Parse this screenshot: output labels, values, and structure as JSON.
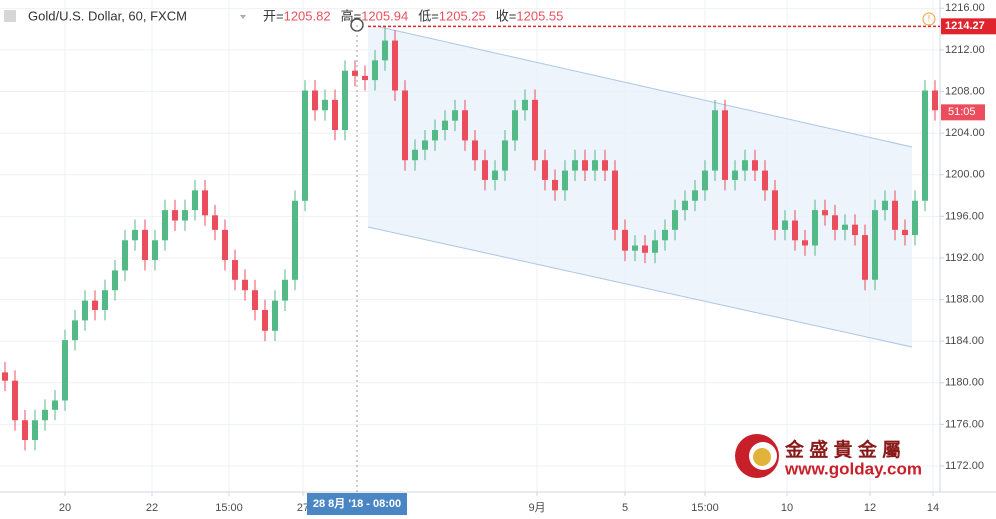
{
  "header": {
    "symbol": "Gold/U.S. Dollar, 60, FXCM",
    "ohlc": [
      {
        "label": "开=",
        "value": "1205.82"
      },
      {
        "label": "高=",
        "value": "1205.94"
      },
      {
        "label": "低=",
        "value": "1205.25"
      },
      {
        "label": "收=",
        "value": "1205.55"
      }
    ]
  },
  "chart_data": {
    "type": "candlestick",
    "up_color": "#53b987",
    "down_color": "#eb4d5c",
    "open": [
      1181.0,
      1180.2,
      1176.4,
      1174.5,
      1176.4,
      1177.4,
      1178.3,
      1184.1,
      1186.0,
      1187.9,
      1187.0,
      1188.9,
      1190.8,
      1193.7,
      1194.7,
      1191.8,
      1193.7,
      1196.6,
      1195.6,
      1196.6,
      1198.5,
      1196.1,
      1194.7,
      1191.8,
      1189.9,
      1188.9,
      1187.0,
      1185.0,
      1187.9,
      1189.9,
      1197.5,
      1208.1,
      1206.2,
      1207.2,
      1204.3,
      1210.0,
      1209.5,
      1209.1,
      1211.0,
      1212.9,
      1208.1,
      1201.4,
      1202.4,
      1203.3,
      1204.3,
      1205.2,
      1206.2,
      1203.3,
      1201.4,
      1199.5,
      1200.4,
      1203.3,
      1206.2,
      1207.2,
      1201.4,
      1199.5,
      1198.5,
      1200.4,
      1201.4,
      1200.4,
      1201.4,
      1200.4,
      1194.7,
      1192.7,
      1193.2,
      1192.5,
      1193.7,
      1194.7,
      1196.6,
      1197.5,
      1198.5,
      1200.4,
      1206.2,
      1199.5,
      1200.4,
      1201.4,
      1200.4,
      1198.5,
      1194.7,
      1195.6,
      1193.7,
      1193.2,
      1196.6,
      1196.1,
      1194.7,
      1195.2,
      1194.2,
      1189.9,
      1196.6,
      1197.5,
      1194.7,
      1194.2,
      1197.5,
      1208.1
    ],
    "high": [
      1182.0,
      1181.2,
      1177.4,
      1177.4,
      1178.4,
      1179.3,
      1185.1,
      1187.0,
      1188.9,
      1188.9,
      1189.9,
      1191.8,
      1194.7,
      1195.7,
      1195.7,
      1194.7,
      1197.6,
      1197.6,
      1197.6,
      1199.5,
      1199.5,
      1197.1,
      1195.7,
      1192.8,
      1190.9,
      1189.9,
      1188.0,
      1188.9,
      1190.9,
      1198.5,
      1209.1,
      1209.1,
      1208.2,
      1208.2,
      1211.0,
      1211.0,
      1210.5,
      1212.0,
      1214.3,
      1213.9,
      1209.1,
      1203.4,
      1204.3,
      1205.3,
      1206.2,
      1207.2,
      1207.2,
      1204.3,
      1202.4,
      1201.4,
      1204.3,
      1207.2,
      1208.2,
      1208.2,
      1202.4,
      1200.5,
      1201.4,
      1202.4,
      1202.4,
      1202.4,
      1202.4,
      1201.4,
      1195.7,
      1194.2,
      1194.2,
      1194.7,
      1195.7,
      1197.6,
      1198.5,
      1199.5,
      1201.4,
      1207.2,
      1207.2,
      1201.4,
      1202.4,
      1202.4,
      1201.4,
      1199.5,
      1196.6,
      1196.6,
      1194.7,
      1197.6,
      1197.6,
      1197.1,
      1196.2,
      1196.2,
      1195.2,
      1197.6,
      1198.5,
      1198.5,
      1195.7,
      1198.5,
      1209.1,
      1209.1
    ],
    "low": [
      1179.2,
      1175.4,
      1173.5,
      1173.5,
      1175.4,
      1176.4,
      1177.3,
      1183.1,
      1185.0,
      1186.0,
      1186.0,
      1187.9,
      1189.8,
      1192.7,
      1190.8,
      1190.8,
      1192.7,
      1194.6,
      1194.6,
      1195.6,
      1195.1,
      1193.7,
      1190.8,
      1188.9,
      1187.9,
      1186.0,
      1184.0,
      1184.0,
      1186.9,
      1188.9,
      1196.5,
      1205.2,
      1205.2,
      1203.3,
      1203.3,
      1208.5,
      1208.1,
      1208.1,
      1210.0,
      1207.1,
      1200.4,
      1200.4,
      1201.4,
      1202.3,
      1203.3,
      1204.2,
      1202.3,
      1200.4,
      1198.5,
      1198.5,
      1199.4,
      1202.3,
      1205.2,
      1200.4,
      1198.5,
      1197.5,
      1197.5,
      1199.4,
      1199.4,
      1199.4,
      1199.4,
      1193.7,
      1191.7,
      1191.7,
      1191.5,
      1191.5,
      1192.7,
      1193.7,
      1195.6,
      1196.5,
      1197.5,
      1199.4,
      1198.5,
      1198.5,
      1199.4,
      1199.4,
      1197.5,
      1193.7,
      1193.7,
      1192.7,
      1192.2,
      1192.2,
      1195.1,
      1193.7,
      1193.7,
      1193.2,
      1188.9,
      1188.9,
      1195.6,
      1193.7,
      1193.2,
      1193.2,
      1196.5,
      1205.2
    ],
    "close": [
      1180.2,
      1176.4,
      1174.5,
      1176.4,
      1177.4,
      1178.3,
      1184.1,
      1186.0,
      1187.9,
      1187.0,
      1188.9,
      1190.8,
      1193.7,
      1194.7,
      1191.8,
      1193.7,
      1196.6,
      1195.6,
      1196.6,
      1198.5,
      1196.1,
      1194.7,
      1191.8,
      1189.9,
      1188.9,
      1187.0,
      1185.0,
      1187.9,
      1189.9,
      1197.5,
      1208.1,
      1206.2,
      1207.2,
      1204.3,
      1210.0,
      1209.5,
      1209.1,
      1211.0,
      1212.9,
      1208.1,
      1201.4,
      1202.4,
      1203.3,
      1204.3,
      1205.2,
      1206.2,
      1203.3,
      1201.4,
      1199.5,
      1200.4,
      1203.3,
      1206.2,
      1207.2,
      1201.4,
      1199.5,
      1198.5,
      1200.4,
      1201.4,
      1200.4,
      1201.4,
      1200.4,
      1194.7,
      1192.7,
      1193.2,
      1192.5,
      1193.7,
      1194.7,
      1196.6,
      1197.5,
      1198.5,
      1200.4,
      1206.2,
      1199.5,
      1200.4,
      1201.4,
      1200.4,
      1198.5,
      1194.7,
      1195.6,
      1193.7,
      1193.2,
      1196.6,
      1196.1,
      1194.7,
      1195.2,
      1194.2,
      1189.9,
      1196.6,
      1197.5,
      1194.7,
      1194.2,
      1197.5,
      1208.1,
      1206.2
    ],
    "xlim": [
      -0.5,
      93.5
    ],
    "xticks": [
      {
        "value": 6,
        "label": "20"
      },
      {
        "value": 14.7,
        "label": "22"
      },
      {
        "value": 22.4,
        "label": "15:00"
      },
      {
        "value": 29.8,
        "label": "27"
      },
      {
        "value": 53.2,
        "label": "9月"
      },
      {
        "value": 62,
        "label": "5"
      },
      {
        "value": 70,
        "label": "15:00"
      },
      {
        "value": 78.2,
        "label": "10"
      },
      {
        "value": 86.5,
        "label": "12"
      },
      {
        "value": 92.8,
        "label": "14"
      }
    ],
    "ylim": [
      1169.5,
      1216.8
    ],
    "yticks": [
      {
        "value": 1172,
        "label": "1172.00"
      },
      {
        "value": 1176,
        "label": "1176.00"
      },
      {
        "value": 1180,
        "label": "1180.00"
      },
      {
        "value": 1184,
        "label": "1184.00"
      },
      {
        "value": 1188,
        "label": "1188.00"
      },
      {
        "value": 1192,
        "label": "1192.00"
      },
      {
        "value": 1196,
        "label": "1196.00"
      },
      {
        "value": 1200,
        "label": "1200.00"
      },
      {
        "value": 1204,
        "label": "1204.00"
      },
      {
        "value": 1208,
        "label": "1208.00"
      },
      {
        "value": 1212,
        "label": "1212.00"
      },
      {
        "value": 1216,
        "label": "1216.00"
      }
    ],
    "grid": true,
    "alert_line": {
      "value": 1214.27,
      "color": "#e0242e"
    },
    "last_price": {
      "value": 1206.0,
      "label": "51:05"
    },
    "crosshair": {
      "x": 35.2,
      "label": "28 8月 '18 - 08:00"
    }
  },
  "watermark": {
    "name": "金 盛 貴 金 屬",
    "url": "www.golday.com"
  }
}
